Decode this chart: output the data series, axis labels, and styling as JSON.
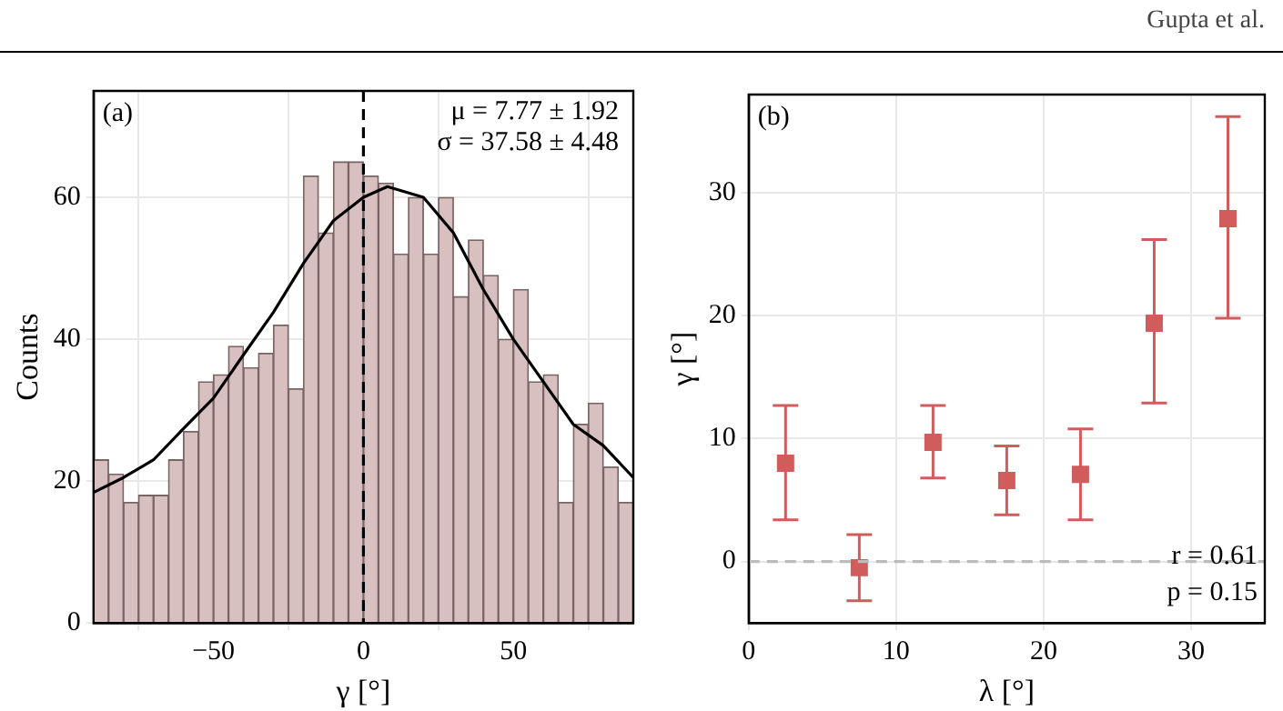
{
  "chart_data": [
    {
      "type": "histogram",
      "xlabel": "γ [°]",
      "ylabel": "Counts",
      "bins": [
        -90,
        -85,
        -80,
        -75,
        -70,
        -65,
        -60,
        -55,
        -50,
        -45,
        -40,
        -35,
        -30,
        -25,
        -20,
        -15,
        -10,
        -5,
        0,
        5,
        10,
        15,
        20,
        25,
        30,
        35,
        40,
        45,
        50,
        55,
        60,
        65,
        70,
        75,
        80,
        85,
        90
      ],
      "values": [
        23,
        21,
        17,
        18,
        18,
        23,
        27,
        34,
        35,
        39,
        36,
        38,
        42,
        33,
        63,
        55,
        65,
        65,
        63,
        62,
        52,
        60,
        52,
        60,
        46,
        54,
        49,
        40,
        47,
        34,
        35,
        17,
        28,
        31,
        22,
        17
      ],
      "color": "#d8bfc0",
      "series": [
        {
          "type": "line",
          "color": "#000000",
          "x": [
            -90,
            -80,
            -70,
            -60,
            -50,
            -40,
            -30,
            -20,
            -10,
            0,
            8,
            20,
            30,
            40,
            50,
            60,
            70,
            80,
            90
          ],
          "values": [
            18.4,
            20.5,
            23,
            27.4,
            31.7,
            37.8,
            43.8,
            50.7,
            56.7,
            60,
            61.5,
            60,
            55,
            47,
            40,
            34,
            28,
            25,
            20.5
          ]
        }
      ],
      "xlim": [
        -90,
        90
      ],
      "xticks": [
        -50,
        0,
        50
      ],
      "ylim": [
        0,
        75
      ],
      "yticks": [
        0,
        20,
        40,
        60
      ],
      "grid": true,
      "ref_lines": [
        {
          "axis": "x",
          "value": 0,
          "color": "#000000",
          "line_style": "dashed"
        }
      ],
      "annotations": [
        "(a)",
        "μ = 7.77 ± 1.92",
        "σ = 37.58 ± 4.48"
      ]
    },
    {
      "type": "scatter",
      "xlabel": "λ [°]",
      "ylabel": "γ [°]",
      "x": [
        2.5,
        7.5,
        12.5,
        17.5,
        22.5,
        27.5,
        32.5
      ],
      "values": [
        8.0,
        -0.5,
        9.7,
        6.6,
        7.1,
        19.4,
        27.9
      ],
      "errors": [
        [
          3.4,
          12.7
        ],
        [
          -3.2,
          2.2
        ],
        [
          6.8,
          12.7
        ],
        [
          3.8,
          9.4
        ],
        [
          3.4,
          10.8
        ],
        [
          12.9,
          26.2
        ],
        [
          19.8,
          36.2
        ]
      ],
      "color": "#d05c5c",
      "marker": "square",
      "xlim": [
        0,
        35
      ],
      "xticks": [
        0,
        10,
        20,
        30
      ],
      "ylim": [
        -5,
        38
      ],
      "yticks": [
        0,
        10,
        20,
        30
      ],
      "grid": true,
      "ref_lines": [
        {
          "axis": "y",
          "value": 0,
          "color": "#bbbbbb",
          "line_style": "dashed"
        }
      ],
      "annotations": [
        "(b)",
        "r = 0.61",
        "p = 0.15",
        "Gupta et al."
      ]
    }
  ]
}
